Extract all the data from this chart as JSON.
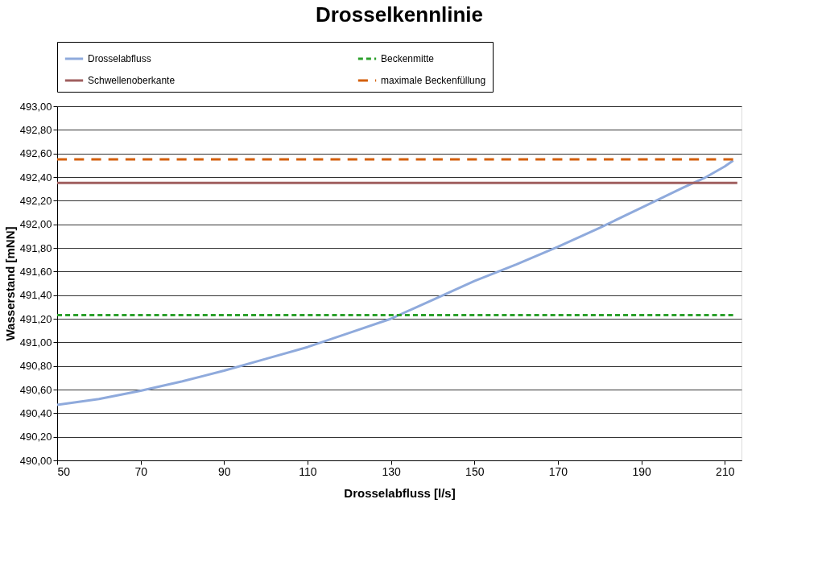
{
  "chart_data": {
    "type": "line",
    "title": "Drosselkennlinie",
    "xlabel": "Drosselabfluss [l/s]",
    "ylabel": "Wasserstand [mNN]",
    "series": [
      {
        "name": "Drosselabfluss",
        "color": "#8faadc",
        "line_style": "solid",
        "x": [
          50,
          60,
          70,
          80,
          90,
          100,
          110,
          120,
          130,
          140,
          150,
          160,
          170,
          180,
          190,
          200,
          205,
          210,
          212
        ],
        "values": [
          490.47,
          490.52,
          490.59,
          490.67,
          490.76,
          490.86,
          490.96,
          491.08,
          491.2,
          491.36,
          491.52,
          491.66,
          491.81,
          491.97,
          492.14,
          492.31,
          492.39,
          492.49,
          492.54
        ]
      },
      {
        "name": "Beckenmitte",
        "color": "#2ca02c",
        "line_style": "dotted",
        "x": [
          50,
          212
        ],
        "values": [
          491.23,
          491.23
        ]
      },
      {
        "name": "Schwellenoberkante",
        "color": "#a05f5f",
        "line_style": "solid",
        "x": [
          50,
          213
        ],
        "values": [
          492.35,
          492.35
        ]
      },
      {
        "name": "maximale Beckenfüllung",
        "color": "#d4600c",
        "line_style": "dashed",
        "x": [
          50,
          212
        ],
        "values": [
          492.55,
          492.55
        ]
      }
    ],
    "xlim": [
      50,
      214
    ],
    "xticks": [
      50,
      70,
      90,
      110,
      130,
      150,
      170,
      190,
      210
    ],
    "ylim": [
      490,
      493
    ],
    "yticks": [
      {
        "value": 490,
        "label": "490,00"
      },
      {
        "value": 490.2,
        "label": "490,20"
      },
      {
        "value": 490.4,
        "label": "490,40"
      },
      {
        "value": 490.6,
        "label": "490,60"
      },
      {
        "value": 490.8,
        "label": "490,80"
      },
      {
        "value": 491,
        "label": "491,00"
      },
      {
        "value": 491.2,
        "label": "491,20"
      },
      {
        "value": 491.4,
        "label": "491,40"
      },
      {
        "value": 491.6,
        "label": "491,60"
      },
      {
        "value": 491.8,
        "label": "491,80"
      },
      {
        "value": 492,
        "label": "492,00"
      },
      {
        "value": 492.2,
        "label": "492,20"
      },
      {
        "value": 492.4,
        "label": "492,40"
      },
      {
        "value": 492.6,
        "label": "492,60"
      },
      {
        "value": 492.8,
        "label": "492,80"
      },
      {
        "value": 493,
        "label": "493,00"
      }
    ],
    "grid": "y",
    "legend": "top",
    "marker": "none"
  }
}
